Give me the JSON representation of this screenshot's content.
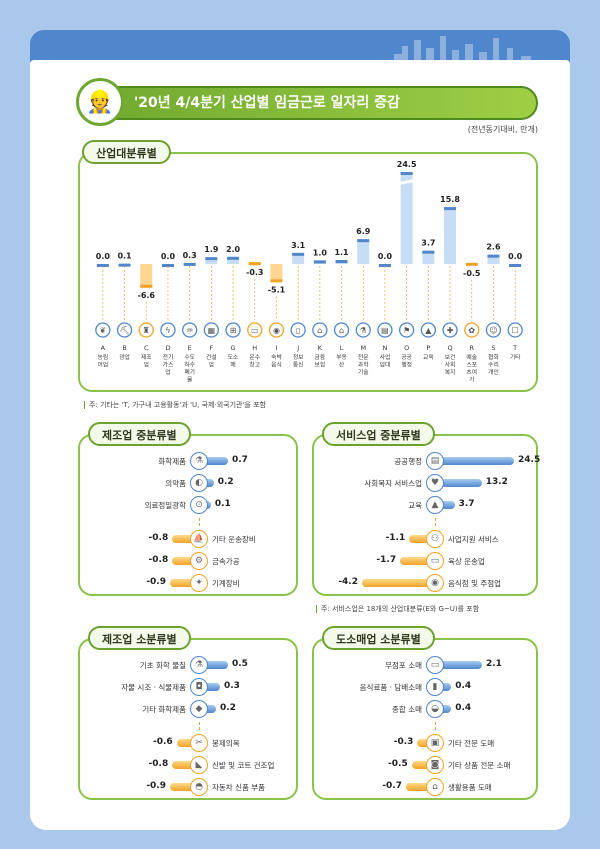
{
  "title": "'20년 4/4분기 산업별 임금근로 일자리 증감",
  "unit_note": "(전년동기대비, 만개)",
  "colors": {
    "positive": "#4f86cc",
    "negative": "#f2a227",
    "panel_border": "#8bc34a",
    "title_green": "#6fa830"
  },
  "chart_data": [
    {
      "type": "bar",
      "panel_title": "산업대분류별",
      "categories": [
        "A",
        "B",
        "C",
        "D",
        "E",
        "F",
        "G",
        "H",
        "I",
        "J",
        "K",
        "L",
        "M",
        "N",
        "O",
        "P",
        "Q",
        "R",
        "S",
        "T"
      ],
      "category_labels": [
        "농림어업",
        "광업",
        "제조업",
        "전기가스업",
        "수도하수폐기물",
        "건설업",
        "도소매",
        "운수창고",
        "숙박음식",
        "정보통신",
        "금융보험",
        "부동산",
        "전문과학기술",
        "사업임대",
        "공공행정",
        "교육",
        "보건사회복지",
        "예술스포츠여가",
        "협회수리개인",
        "기타"
      ],
      "values": [
        0.0,
        0.1,
        -6.6,
        0.0,
        0.3,
        1.9,
        2.0,
        -0.3,
        -5.1,
        3.1,
        1.0,
        1.1,
        6.9,
        0.0,
        24.5,
        3.7,
        15.8,
        -0.5,
        2.6,
        0.0
      ],
      "value_labels": [
        "0.0",
        "0.1",
        "-6.6",
        "0.0",
        "0.3",
        "1.9",
        "2.0",
        "-0.3",
        "-5.1",
        "3.1",
        "1.0",
        "1.1",
        "6.9",
        "0.0",
        "24.5",
        "3.7",
        "15.8",
        "-0.5",
        "2.6",
        "0.0"
      ],
      "icons": [
        "leaf-icon",
        "mine-icon",
        "factory-icon",
        "lightning-icon",
        "water-icon",
        "building-icon",
        "cart-icon",
        "truck-icon",
        "dish-icon",
        "phone-icon",
        "bank-icon",
        "house-icon",
        "flask-icon",
        "briefcase-icon",
        "government-icon",
        "school-icon",
        "medical-icon",
        "palette-icon",
        "people-icon",
        "phone-other-icon"
      ],
      "note": "주: 기타는 'T, 가구내 고용활동'과 'U, 국제·외국기관'을 포함"
    },
    {
      "type": "bar",
      "orientation": "horizontal",
      "panel_title": "제조업 중분류별",
      "categories": [
        "화학제품",
        "의약품",
        "의료정밀광학",
        "기타 운송장비",
        "금속가공",
        "기계장비"
      ],
      "values": [
        0.7,
        0.2,
        0.1,
        -0.8,
        -0.8,
        -0.9
      ],
      "value_labels": [
        "0.7",
        "0.2",
        "0.1",
        "-0.8",
        "-0.8",
        "-0.9"
      ],
      "icons": [
        "flask-icon",
        "pill-icon",
        "microscope-icon",
        "ship-icon",
        "gear-icon",
        "wrench-icon"
      ]
    },
    {
      "type": "bar",
      "orientation": "horizontal",
      "panel_title": "서비스업 중분류별",
      "categories": [
        "공공행정",
        "사회복지 서비스업",
        "교육",
        "사업지원 서비스",
        "육상 운송업",
        "음식점 및 주점업"
      ],
      "values": [
        24.5,
        13.2,
        3.7,
        -1.1,
        -1.7,
        -4.2
      ],
      "value_labels": [
        "24.5",
        "13.2",
        "3.7",
        "-1.1",
        "-1.7",
        "-4.2"
      ],
      "icons": [
        "document-icon",
        "care-icon",
        "school-icon",
        "handshake-icon",
        "truck-icon",
        "dish-icon"
      ],
      "note": "주: 서비스업은 18개의 산업대분류(E와 G~U)를 포함"
    },
    {
      "type": "bar",
      "orientation": "horizontal",
      "panel_title": "제조업 소분류별",
      "categories": [
        "기초 화학 물질",
        "자물 시조 · 식물제품",
        "기타 화학제품",
        "봉제의복",
        "신발 및 코트 건조업",
        "자동차 신품 부품"
      ],
      "values": [
        0.5,
        0.3,
        0.2,
        -0.6,
        -0.8,
        -0.9
      ],
      "value_labels": [
        "0.5",
        "0.3",
        "0.2",
        "-0.6",
        "-0.8",
        "-0.9"
      ],
      "icons": [
        "beaker-icon",
        "pill-bottle-icon",
        "drop-icon",
        "sewing-icon",
        "shoe-icon",
        "car-icon"
      ]
    },
    {
      "type": "bar",
      "orientation": "horizontal",
      "panel_title": "도소매업 소분류별",
      "categories": [
        "무점포 소매",
        "음식료품 · 담배소매",
        "종합 소매",
        "기타 전문 도매",
        "기타 상품 전문 소매",
        "생활용품 도매"
      ],
      "values": [
        2.1,
        0.4,
        0.4,
        -0.3,
        -0.5,
        -0.7
      ],
      "value_labels": [
        "2.1",
        "0.4",
        "0.4",
        "-0.3",
        "-0.5",
        "-0.7"
      ],
      "icons": [
        "laptop-icon",
        "bottle-icon",
        "basket-icon",
        "box-icon",
        "bag-icon",
        "home-goods-icon"
      ]
    }
  ]
}
